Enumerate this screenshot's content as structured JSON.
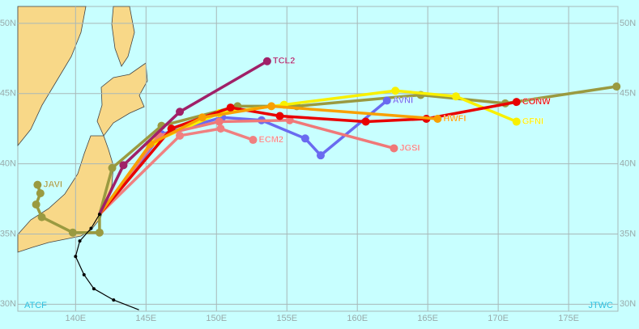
{
  "map": {
    "lonlim": [
      135.9,
      178.5
    ],
    "latlim": [
      29.5,
      51.2
    ],
    "lonticks": [
      {
        "value": 140,
        "label": "140E"
      },
      {
        "value": 145,
        "label": "145E"
      },
      {
        "value": 150,
        "label": "150E"
      },
      {
        "value": 155,
        "label": "155E"
      },
      {
        "value": 160,
        "label": "160E"
      },
      {
        "value": 165,
        "label": "165E"
      },
      {
        "value": 170,
        "label": "170E"
      },
      {
        "value": 175,
        "label": "175E"
      }
    ],
    "latticks": [
      {
        "value": 30,
        "label": "30N"
      },
      {
        "value": 35,
        "label": "35N"
      },
      {
        "value": 40,
        "label": "40N"
      },
      {
        "value": 45,
        "label": "45N"
      },
      {
        "value": 50,
        "label": "50N"
      }
    ],
    "left_corner": "ATCF",
    "right_corner": "JTWC",
    "best_track": {
      "color": "#000000",
      "lon": [
        144.5,
        142.7,
        141.3,
        140.6,
        140.0,
        140.3,
        141.1,
        141.7
      ],
      "lat": [
        29.6,
        30.3,
        31.1,
        32.1,
        33.4,
        34.5,
        35.4,
        36.4
      ]
    },
    "tracks": [
      {
        "color": "#9a9a40",
        "lon": [
          141.7,
          142.6,
          146.1,
          151.5,
          155.7,
          164.5,
          170.5,
          178.4
        ],
        "lat": [
          36.4,
          39.7,
          42.7,
          44.1,
          44.1,
          44.9,
          44.3,
          45.5
        ]
      },
      {
        "name": "AVNI",
        "color": "#6a6af0",
        "lon": [
          141.7,
          146.1,
          150.4,
          153.2,
          156.3,
          157.4,
          162.1
        ],
        "lat": [
          36.4,
          42.1,
          43.3,
          43.1,
          41.8,
          40.6,
          44.5
        ]
      },
      {
        "name": "GFNI",
        "color": "#f8f000",
        "lon": [
          141.7,
          145.6,
          150.2,
          154.8,
          162.7,
          167.0,
          171.3
        ],
        "lat": [
          36.4,
          41.6,
          43.6,
          44.2,
          45.2,
          44.8,
          43.0
        ]
      },
      {
        "name": "JGSI",
        "color": "#f07878",
        "lon": [
          141.7,
          145.9,
          150.2,
          155.2,
          162.6
        ],
        "lat": [
          36.4,
          42.0,
          43.0,
          43.1,
          41.1
        ]
      },
      {
        "name": "ECM2",
        "color": "#f08080",
        "lon": [
          141.7,
          147.4,
          150.3,
          152.6
        ],
        "lat": [
          36.4,
          42.0,
          42.5,
          41.7
        ]
      },
      {
        "name": "CONW",
        "color": "#e80000",
        "lon": [
          141.7,
          146.8,
          151.0,
          154.5,
          160.6,
          164.9,
          171.3
        ],
        "lat": [
          36.4,
          42.5,
          44.0,
          43.4,
          43.0,
          43.2,
          44.4
        ]
      },
      {
        "name": "HWFI",
        "color": "#f8a000",
        "lon": [
          141.7,
          145.3,
          149.0,
          153.9,
          165.7
        ],
        "lat": [
          36.4,
          41.4,
          43.3,
          44.1,
          43.2
        ]
      },
      {
        "name": "TCL2",
        "color": "#a02068",
        "lon": [
          141.7,
          143.4,
          147.4,
          153.6
        ],
        "lat": [
          36.4,
          39.9,
          43.7,
          47.3
        ]
      },
      {
        "name": "JAVI",
        "color": "#9a9a40",
        "lon": [
          141.7,
          141.7,
          139.8,
          137.6,
          137.2,
          137.5,
          137.3
        ],
        "lat": [
          36.4,
          35.1,
          35.1,
          36.2,
          37.1,
          37.9,
          38.5
        ]
      }
    ]
  }
}
